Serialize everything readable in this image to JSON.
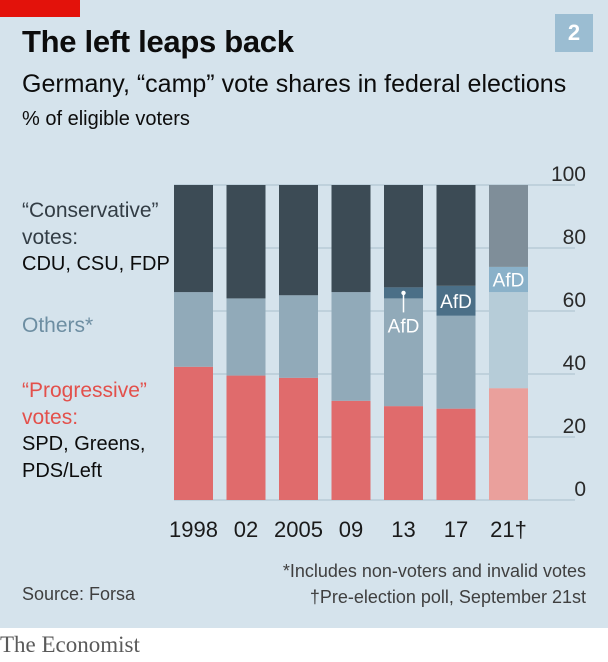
{
  "header": {
    "title": "The left leaps back",
    "badge": "2",
    "subtitle": "Germany, “camp” vote shares in federal elections",
    "unit": "% of eligible voters"
  },
  "legend": {
    "conservative_head": "“Conservative” votes:",
    "conservative_parties": "CDU, CSU, FDP",
    "others": "Others*",
    "progressive_head": "“Progressive” votes:",
    "progressive_parties_1": "SPD, Greens,",
    "progressive_parties_2": "PDS/Left"
  },
  "footer": {
    "note1": "*Includes non-voters and invalid votes",
    "note2": "†Pre-election poll, September 21st",
    "source": "Source: Forsa",
    "brand": "The Economist"
  },
  "colors": {
    "conservative": "#3c4b55",
    "others": "#91aab9",
    "progressive": "#e06b6c",
    "afd": "#4b6f87",
    "conservative_poll": "#7f8e99",
    "others_poll": "#b6ccd8",
    "progressive_poll": "#eaa09c",
    "afd_poll": "#8ab1c9"
  },
  "chart_data": {
    "type": "bar",
    "stacked": true,
    "categories": [
      "1998",
      "02",
      "2005",
      "09",
      "13",
      "17",
      "21†"
    ],
    "series": [
      {
        "name": "“Progressive” votes: SPD, Greens, PDS/Left",
        "values": [
          42.3,
          39.5,
          38.8,
          31.5,
          29.8,
          29.0,
          35.5
        ]
      },
      {
        "name": "Others*",
        "values": [
          23.7,
          24.5,
          26.2,
          34.5,
          34.2,
          29.5,
          30.5
        ]
      },
      {
        "name": "AfD",
        "values": [
          0,
          0,
          0,
          0,
          3.5,
          9.5,
          8.0
        ]
      },
      {
        "name": "“Conservative” votes: CDU, CSU, FDP",
        "values": [
          34.0,
          36.0,
          35.0,
          34.0,
          32.5,
          32.0,
          26.0
        ]
      }
    ],
    "annotations": [
      {
        "category": "13",
        "text": "AfD"
      },
      {
        "category": "17",
        "text": "AfD"
      },
      {
        "category": "21†",
        "text": "AfD"
      }
    ],
    "ylim": [
      0,
      100
    ],
    "yticks": [
      0,
      20,
      40,
      60,
      80,
      100
    ],
    "grid": true,
    "poll_category": "21†"
  }
}
